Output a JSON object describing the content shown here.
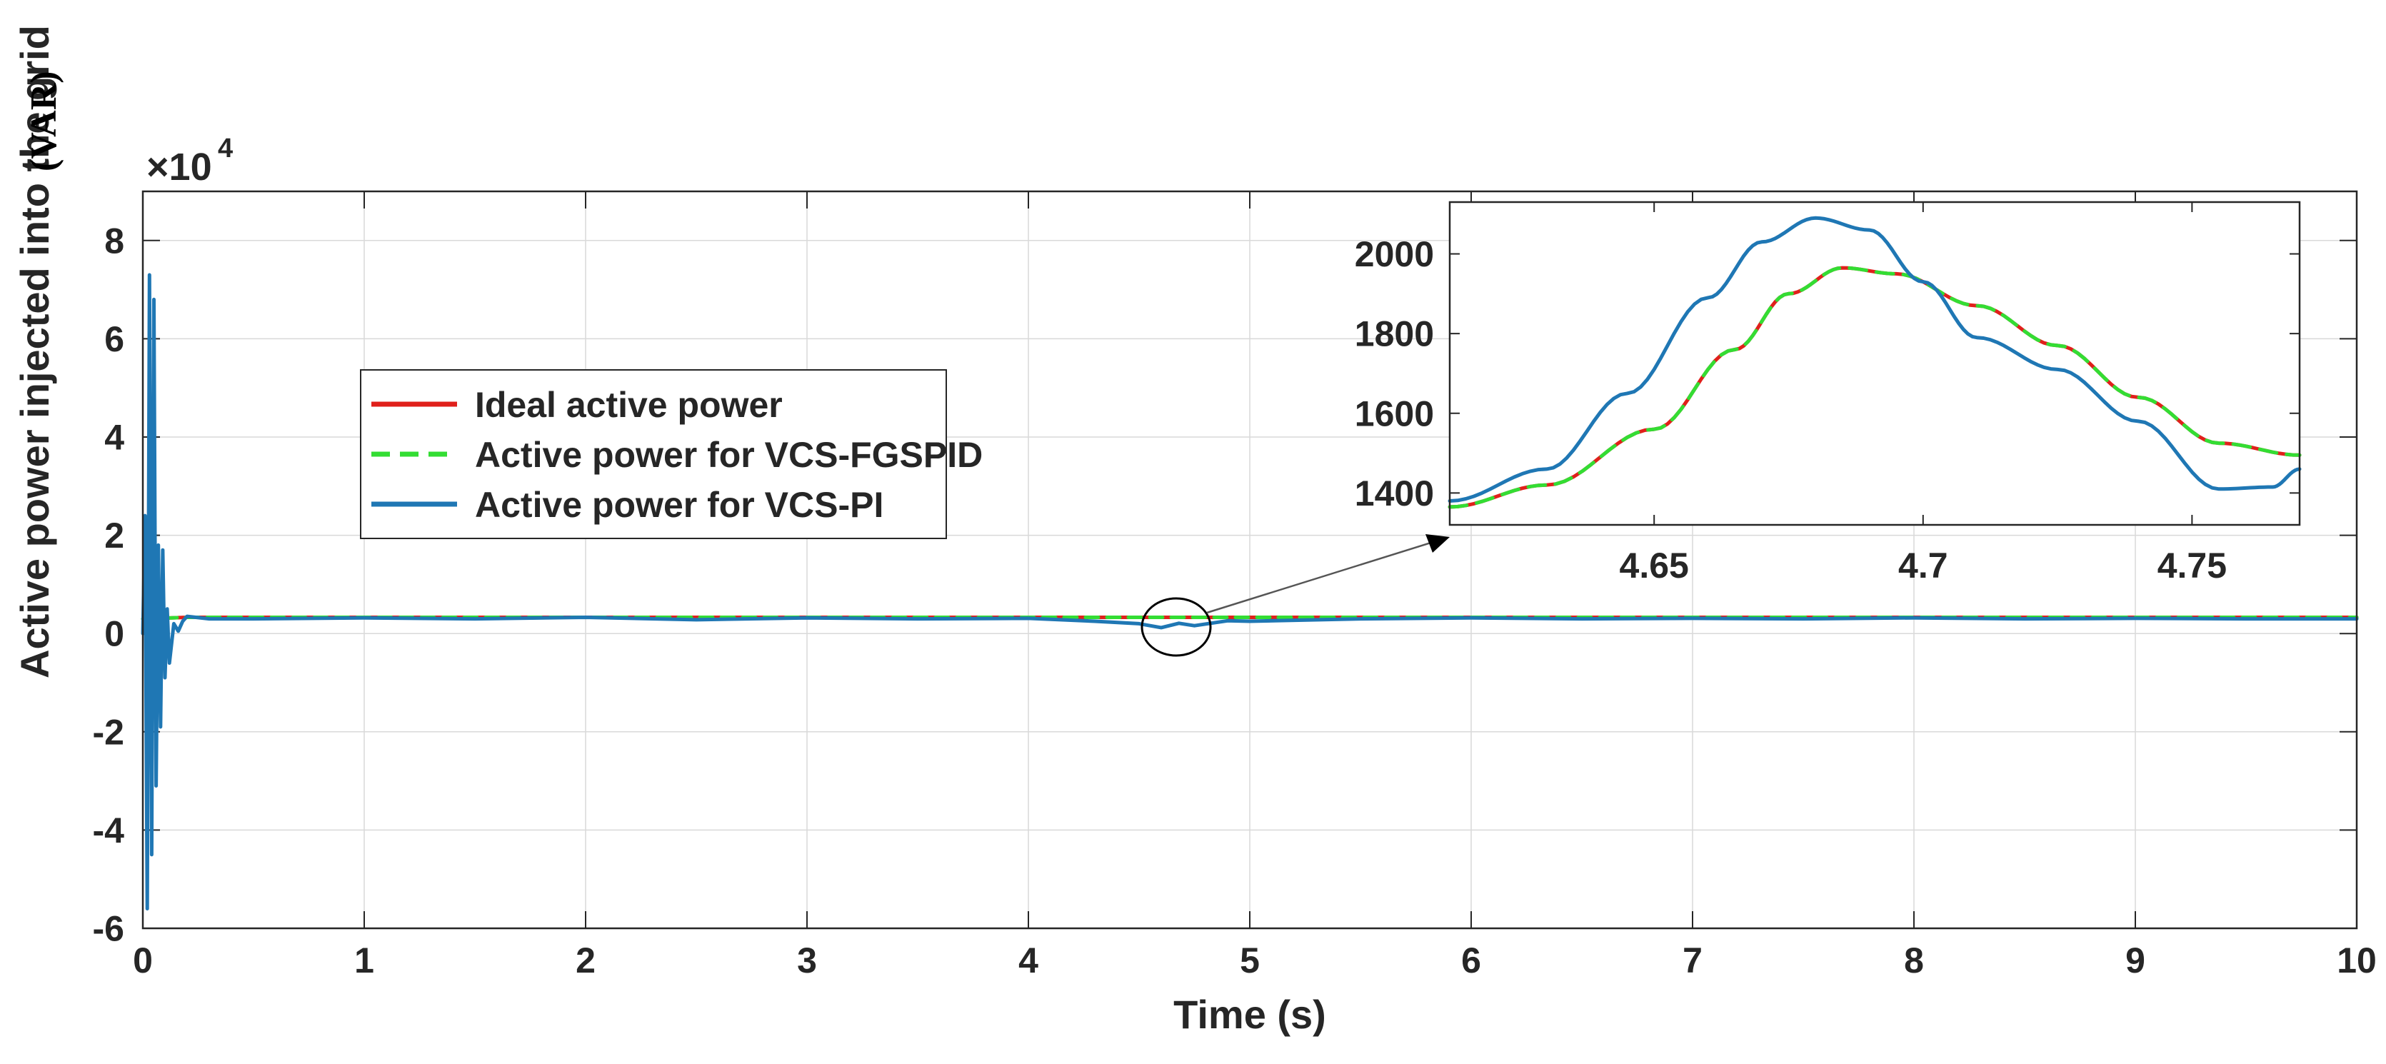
{
  "chart_data": [
    {
      "id": "main",
      "type": "line",
      "xlabel": "Time (s)",
      "ylabel": "Active power injected into the grid",
      "ylabel_unit": "(VAR)",
      "y_exponent_label": "×10",
      "y_exponent_power": "4",
      "xlim": [
        0,
        10
      ],
      "ylim": [
        -6,
        9
      ],
      "xticks": [
        0,
        1,
        2,
        3,
        4,
        5,
        6,
        7,
        8,
        9,
        10
      ],
      "yticks": [
        -6,
        -4,
        -2,
        0,
        2,
        4,
        6,
        8
      ],
      "grid": true,
      "legend_position": "center-left",
      "series": [
        {
          "name": "Ideal active power",
          "color": "#e0201b",
          "style": "solid",
          "x": [
            0,
            0.2,
            10
          ],
          "y": [
            0.3,
            0.33,
            0.33
          ]
        },
        {
          "name": "Active power for VCS-FGSPID",
          "color": "#33dd33",
          "style": "dashed",
          "x": [
            0,
            0.2,
            10
          ],
          "y": [
            0.3,
            0.33,
            0.33
          ]
        },
        {
          "name": "Active power for VCS-PI",
          "color": "#1f77b4",
          "style": "solid",
          "note": "values in units of 1e4; large oscillation at start-up then ~0.3 with small ripple",
          "x": [
            0,
            0.01,
            0.02,
            0.03,
            0.04,
            0.05,
            0.06,
            0.07,
            0.08,
            0.09,
            0.1,
            0.11,
            0.12,
            0.14,
            0.16,
            0.18,
            0.2,
            0.3,
            0.5,
            1.0,
            1.5,
            2.0,
            2.5,
            3.0,
            3.5,
            4.0,
            4.3,
            4.5,
            4.6,
            4.68,
            4.75,
            4.9,
            5.0,
            5.5,
            6.0,
            6.5,
            7.0,
            7.5,
            8.0,
            8.5,
            9.0,
            9.5,
            10.0
          ],
          "y": [
            0,
            2.4,
            -5.6,
            7.3,
            -4.5,
            6.8,
            -3.1,
            1.8,
            -1.9,
            1.7,
            -0.9,
            0.5,
            -0.6,
            0.2,
            0.05,
            0.25,
            0.35,
            0.3,
            0.3,
            0.32,
            0.3,
            0.33,
            0.28,
            0.32,
            0.3,
            0.31,
            0.25,
            0.2,
            0.12,
            0.21,
            0.16,
            0.26,
            0.25,
            0.3,
            0.32,
            0.3,
            0.31,
            0.3,
            0.32,
            0.3,
            0.31,
            0.3,
            0.3
          ]
        }
      ],
      "annotation": "zoom ellipse near t = 4.7 s with arrow to inset"
    },
    {
      "id": "inset",
      "type": "line",
      "xlim": [
        4.612,
        4.77
      ],
      "ylim": [
        1320,
        2130
      ],
      "xticks": [
        4.65,
        4.7,
        4.75
      ],
      "xtick_labels": [
        "4.65",
        "4.7",
        "4.75"
      ],
      "yticks": [
        1400,
        1600,
        1800,
        2000
      ],
      "grid": false,
      "series": [
        {
          "name": "Ideal active power",
          "color": "#e0201b",
          "style": "solid",
          "x": [
            4.612,
            4.63,
            4.65,
            4.665,
            4.675,
            4.685,
            4.695,
            4.71,
            4.725,
            4.74,
            4.755,
            4.77
          ],
          "y": [
            1365,
            1420,
            1560,
            1760,
            1900,
            1965,
            1950,
            1870,
            1770,
            1640,
            1525,
            1495
          ]
        },
        {
          "name": "Active power for VCS-FGSPID",
          "color": "#33dd33",
          "style": "dashed",
          "x": [
            4.612,
            4.63,
            4.65,
            4.665,
            4.675,
            4.685,
            4.695,
            4.71,
            4.725,
            4.74,
            4.755,
            4.77
          ],
          "y": [
            1365,
            1420,
            1560,
            1760,
            1900,
            1965,
            1950,
            1870,
            1770,
            1640,
            1525,
            1495
          ]
        },
        {
          "name": "Active power for VCS-PI",
          "color": "#1f77b4",
          "style": "solid",
          "x": [
            4.612,
            4.63,
            4.645,
            4.66,
            4.67,
            4.68,
            4.69,
            4.7,
            4.71,
            4.725,
            4.74,
            4.755,
            4.765,
            4.77
          ],
          "y": [
            1380,
            1460,
            1650,
            1890,
            2030,
            2090,
            2060,
            1930,
            1790,
            1710,
            1580,
            1410,
            1415,
            1460
          ]
        }
      ]
    }
  ]
}
